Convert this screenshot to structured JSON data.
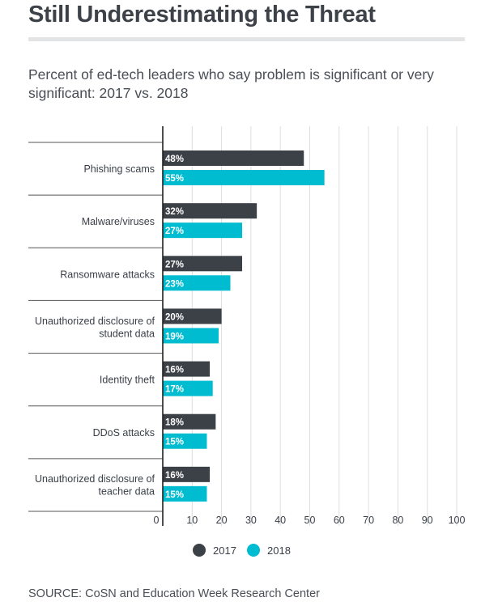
{
  "header": {
    "title": "Still Underestimating the Threat",
    "subtitle": "Percent of ed-tech leaders who say problem is significant or very significant: 2017 vs. 2018"
  },
  "source": "SOURCE: CoSN and Education Week Research Center",
  "colors": {
    "s2017": "#3c4047",
    "s2018": "#00bcd0",
    "grid": "#dedede",
    "axis": "#222222"
  },
  "chart_data": {
    "type": "bar",
    "orientation": "horizontal",
    "categories": [
      [
        "Phishing scams"
      ],
      [
        "Malware/viruses"
      ],
      [
        "Ransomware attacks"
      ],
      [
        "Unauthorized disclosure of",
        "student data"
      ],
      [
        "Identity theft"
      ],
      [
        "DDoS attacks"
      ],
      [
        "Unauthorized disclosure of",
        "teacher data"
      ]
    ],
    "series": [
      {
        "name": "2017",
        "values": [
          48,
          32,
          27,
          20,
          16,
          18,
          16
        ],
        "labels": [
          "48%",
          "32%",
          "27%",
          "20%",
          "16%",
          "18%",
          "16%"
        ]
      },
      {
        "name": "2018",
        "values": [
          55,
          27,
          23,
          19,
          17,
          15,
          15
        ],
        "labels": [
          "55%",
          "27%",
          "23%",
          "19%",
          "17%",
          "15%",
          "15%"
        ]
      }
    ],
    "xlim": [
      0,
      100
    ],
    "xticks": [
      0,
      10,
      20,
      30,
      40,
      50,
      60,
      70,
      80,
      90,
      100
    ],
    "grid": true,
    "legend": "bottom-center"
  }
}
